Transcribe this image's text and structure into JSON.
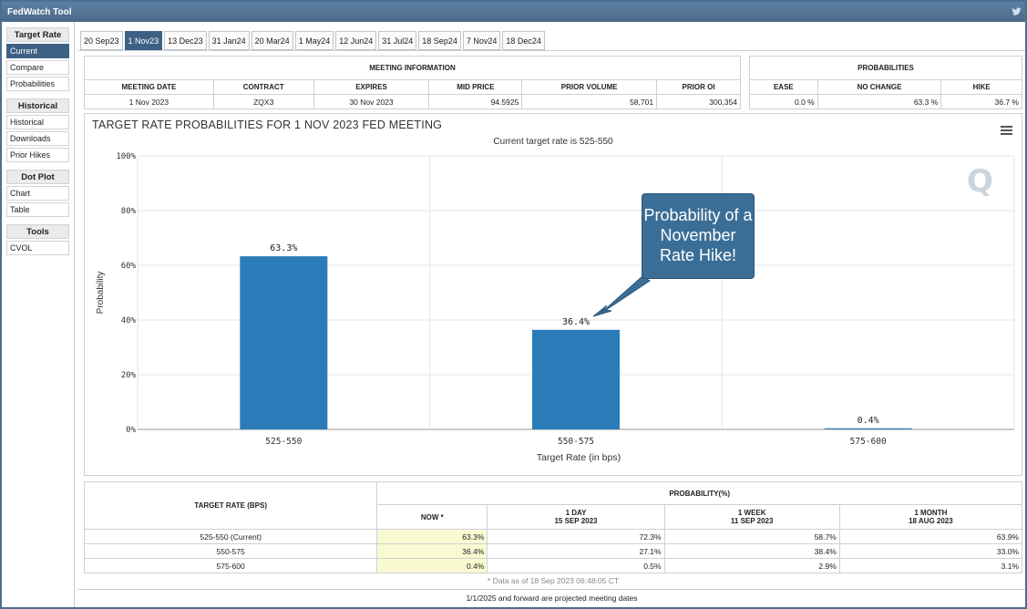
{
  "app": {
    "title": "FedWatch Tool"
  },
  "sidebar": {
    "sections": [
      {
        "heading": "Target Rate",
        "items": [
          "Current",
          "Compare",
          "Probabilities"
        ]
      },
      {
        "heading": "Historical",
        "items": [
          "Historical",
          "Downloads",
          "Prior Hikes"
        ]
      },
      {
        "heading": "Dot Plot",
        "items": [
          "Chart",
          "Table"
        ]
      },
      {
        "heading": "Tools",
        "items": [
          "CVOL"
        ]
      }
    ]
  },
  "tabs": [
    "20 Sep23",
    "1 Nov23",
    "13 Dec23",
    "31 Jan24",
    "20 Mar24",
    "1 May24",
    "12 Jun24",
    "31 Jul24",
    "18 Sep24",
    "7 Nov24",
    "18 Dec24"
  ],
  "meeting_info": {
    "heading": "MEETING INFORMATION",
    "headers": [
      "MEETING DATE",
      "CONTRACT",
      "EXPIRES",
      "MID PRICE",
      "PRIOR VOLUME",
      "PRIOR OI"
    ],
    "values": [
      "1 Nov 2023",
      "ZQX3",
      "30 Nov 2023",
      "94.5925",
      "58,701",
      "300,354"
    ]
  },
  "probabilities": {
    "heading": "PROBABILITIES",
    "headers": [
      "EASE",
      "NO CHANGE",
      "HIKE"
    ],
    "values": [
      "0.0 %",
      "63.3 %",
      "36.7 %"
    ]
  },
  "chart": {
    "title": "TARGET RATE PROBABILITIES FOR 1 NOV 2023 FED MEETING",
    "subtitle": "Current target rate is 525-550",
    "callout": "Probability of a November Rate Hike!",
    "logo": "Q"
  },
  "chart_data": {
    "type": "bar",
    "title": "TARGET RATE PROBABILITIES FOR 1 NOV 2023 FED MEETING",
    "subtitle": "Current target rate is 525-550",
    "categories": [
      "525-550",
      "550-575",
      "575-600"
    ],
    "values": [
      63.3,
      36.4,
      0.4
    ],
    "data_labels": [
      "63.3%",
      "36.4%",
      "0.4%"
    ],
    "xlabel": "Target Rate (in bps)",
    "ylabel": "Probability",
    "ylim": [
      0,
      100
    ],
    "yticks": [
      "0%",
      "20%",
      "40%",
      "60%",
      "80%",
      "100%"
    ],
    "grid": true,
    "bar_color": "#2b7bb9"
  },
  "prob_table": {
    "col1_header": "TARGET RATE (BPS)",
    "group_header": "PROBABILITY(%)",
    "col_headers": [
      {
        "line1": "NOW *",
        "line2": ""
      },
      {
        "line1": "1 DAY",
        "line2": "15 SEP 2023"
      },
      {
        "line1": "1 WEEK",
        "line2": "11 SEP 2023"
      },
      {
        "line1": "1 MONTH",
        "line2": "18 AUG 2023"
      }
    ],
    "rows": [
      {
        "rate": "525-550 (Current)",
        "vals": [
          "63.3%",
          "72.3%",
          "58.7%",
          "63.9%"
        ]
      },
      {
        "rate": "550-575",
        "vals": [
          "36.4%",
          "27.1%",
          "38.4%",
          "33.0%"
        ]
      },
      {
        "rate": "575-600",
        "vals": [
          "0.4%",
          "0.5%",
          "2.9%",
          "3.1%"
        ]
      }
    ],
    "footnote": "* Data as of 18 Sep 2023 06:48:05 CT"
  },
  "bottom_note": "1/1/2025 and forward are projected meeting dates"
}
